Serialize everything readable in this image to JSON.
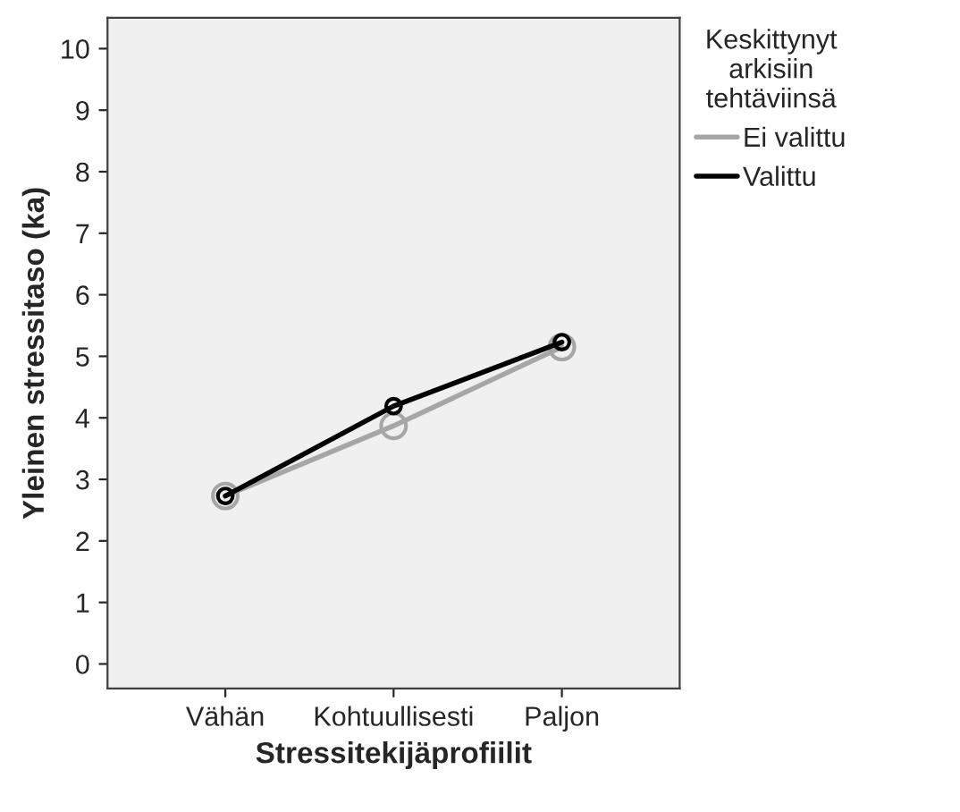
{
  "chart_data": {
    "type": "line",
    "xlabel": "Stressitekijäprofiilit",
    "ylabel": "Yleinen stressitaso (ka)",
    "legend_title": "Keskittynyt\narkisiin\ntehtäviinsä",
    "categories": [
      "Vähän",
      "Kohtuullisesti",
      "Paljon"
    ],
    "series": [
      {
        "name": "Ei valittu",
        "color": "#a6a6a6",
        "values": [
          2.73,
          3.87,
          5.15
        ]
      },
      {
        "name": "Valittu",
        "color": "#000000",
        "values": [
          2.73,
          4.19,
          5.23
        ]
      }
    ],
    "ylim": [
      -0.4,
      10.5
    ],
    "yticks": [
      0,
      1,
      2,
      3,
      4,
      5,
      6,
      7,
      8,
      9,
      10
    ],
    "marker": "circle",
    "grid": false,
    "legend": "top right"
  }
}
